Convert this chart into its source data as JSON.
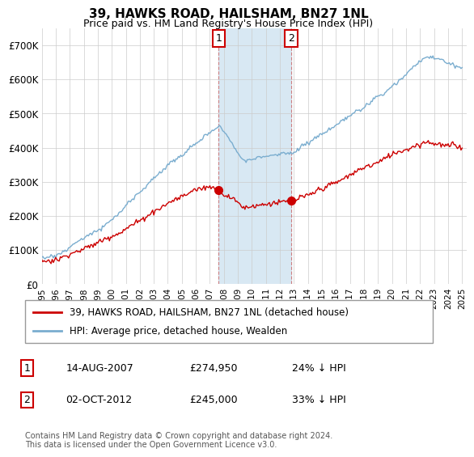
{
  "title": "39, HAWKS ROAD, HAILSHAM, BN27 1NL",
  "subtitle": "Price paid vs. HM Land Registry's House Price Index (HPI)",
  "legend_line1": "39, HAWKS ROAD, HAILSHAM, BN27 1NL (detached house)",
  "legend_line2": "HPI: Average price, detached house, Wealden",
  "transaction1_date": "14-AUG-2007",
  "transaction1_price": "£274,950",
  "transaction1_hpi": "24% ↓ HPI",
  "transaction2_date": "02-OCT-2012",
  "transaction2_price": "£245,000",
  "transaction2_hpi": "33% ↓ HPI",
  "footnote": "Contains HM Land Registry data © Crown copyright and database right 2024.\nThis data is licensed under the Open Government Licence v3.0.",
  "red_color": "#cc0000",
  "blue_color": "#7aadcf",
  "bg_shade_color": "#d8e8f3",
  "ylim": [
    0,
    750000
  ],
  "yticks": [
    0,
    100000,
    200000,
    300000,
    400000,
    500000,
    600000,
    700000
  ],
  "ytick_labels": [
    "£0",
    "£100K",
    "£200K",
    "£300K",
    "£400K",
    "£500K",
    "£600K",
    "£700K"
  ]
}
